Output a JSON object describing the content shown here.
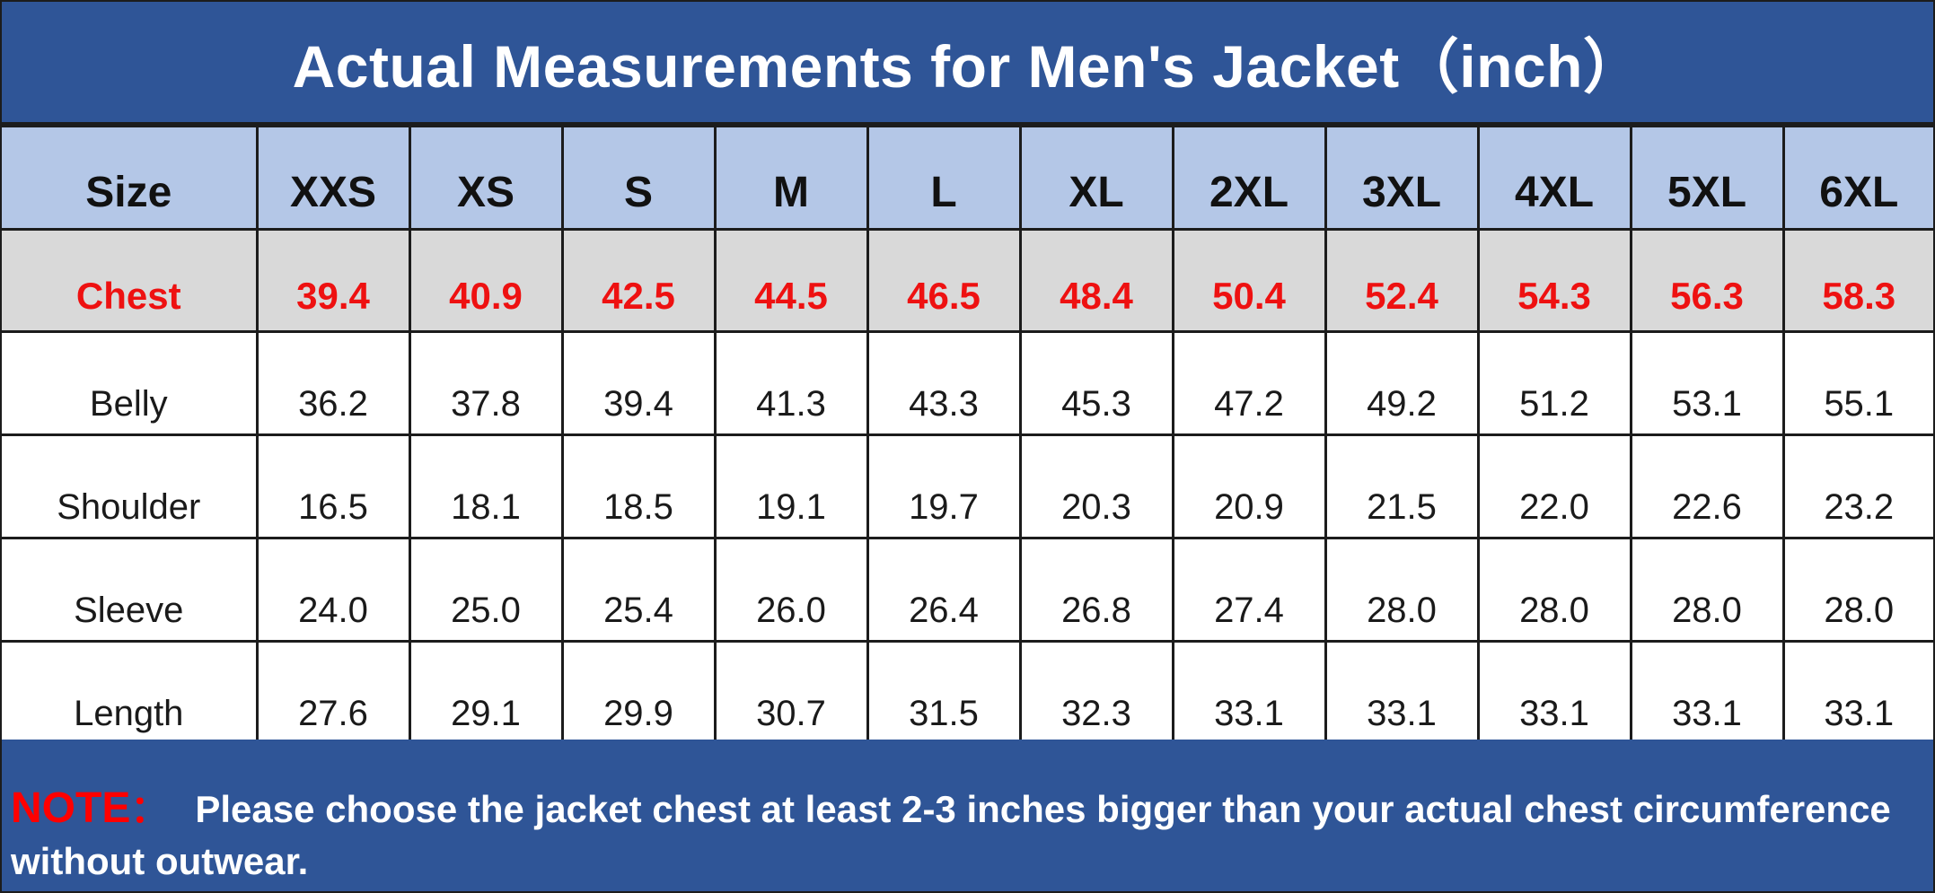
{
  "title": "Actual Measurements for Men's Jacket（inch）",
  "table": {
    "header": [
      "Size",
      "XXS",
      "XS",
      "S",
      "M",
      "L",
      "XL",
      "2XL",
      "3XL",
      "4XL",
      "5XL",
      "6XL"
    ],
    "rows": [
      {
        "label": "Chest",
        "values": [
          "39.4",
          "40.9",
          "42.5",
          "44.5",
          "46.5",
          "48.4",
          "50.4",
          "52.4",
          "54.3",
          "56.3",
          "58.3"
        ]
      },
      {
        "label": "Belly",
        "values": [
          "36.2",
          "37.8",
          "39.4",
          "41.3",
          "43.3",
          "45.3",
          "47.2",
          "49.2",
          "51.2",
          "53.1",
          "55.1"
        ]
      },
      {
        "label": "Shoulder",
        "values": [
          "16.5",
          "18.1",
          "18.5",
          "19.1",
          "19.7",
          "20.3",
          "20.9",
          "21.5",
          "22.0",
          "22.6",
          "23.2"
        ]
      },
      {
        "label": "Sleeve",
        "values": [
          "24.0",
          "25.0",
          "25.4",
          "26.0",
          "26.4",
          "26.8",
          "27.4",
          "28.0",
          "28.0",
          "28.0",
          "28.0"
        ]
      },
      {
        "label": "Length",
        "values": [
          "27.6",
          "29.1",
          "29.9",
          "30.7",
          "31.5",
          "32.3",
          "33.1",
          "33.1",
          "33.1",
          "33.1",
          "33.1"
        ]
      }
    ]
  },
  "note": {
    "label": "NOTE",
    "separator": "：",
    "text": "Please choose the jacket chest at least 2-3 inches bigger than your actual chest circumference without outwear."
  },
  "colors": {
    "banner": "#2f5597",
    "header_row": "#b4c7e7",
    "chest_row": "#d9d9d9",
    "chest_text": "#ee1111",
    "note_label": "#ff0000"
  }
}
